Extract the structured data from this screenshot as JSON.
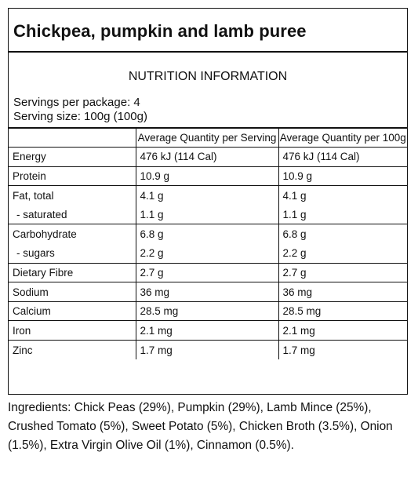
{
  "product": {
    "title": "Chickpea, pumpkin and lamb puree"
  },
  "panel": {
    "heading": "NUTRITION INFORMATION",
    "servings_per_package": "Servings per package: 4",
    "serving_size": "Serving size: 100g (100g)",
    "columns": [
      "",
      "Average Quantity per Serving",
      "Average Quantity per 100g"
    ],
    "rows": [
      {
        "label": "Energy",
        "per_serving": "476 kJ (114 Cal)",
        "per_100g": "476 kJ (114 Cal)"
      },
      {
        "label": "Protein",
        "per_serving": "10.9 g",
        "per_100g": "10.9 g"
      },
      {
        "label": "Fat, total",
        "per_serving": "4.1 g",
        "per_100g": "4.1 g"
      },
      {
        "label": "saturated",
        "per_serving": "1.1 g",
        "per_100g": "1.1 g"
      },
      {
        "label": "Carbohydrate",
        "per_serving": "6.8 g",
        "per_100g": "6.8 g"
      },
      {
        "label": "sugars",
        "per_serving": "2.2 g",
        "per_100g": "2.2 g"
      },
      {
        "label": "Dietary Fibre",
        "per_serving": "2.7 g",
        "per_100g": "2.7 g"
      },
      {
        "label": "Sodium",
        "per_serving": "36 mg",
        "per_100g": "36 mg"
      },
      {
        "label": "Calcium",
        "per_serving": "28.5 mg",
        "per_100g": "28.5 mg"
      },
      {
        "label": "Iron",
        "per_serving": "2.1 mg",
        "per_100g": "2.1 mg"
      },
      {
        "label": "Zinc",
        "per_serving": "1.7 mg",
        "per_100g": "1.7 mg"
      }
    ]
  },
  "ingredients": {
    "text": "Ingredients: Chick Peas (29%), Pumpkin (29%), Lamb Mince (25%), Crushed Tomato (5%), Sweet Potato (5%), Chicken Broth (3.5%), Onion (1.5%), Extra Virgin Olive Oil (1%), Cinnamon (0.5%)."
  }
}
